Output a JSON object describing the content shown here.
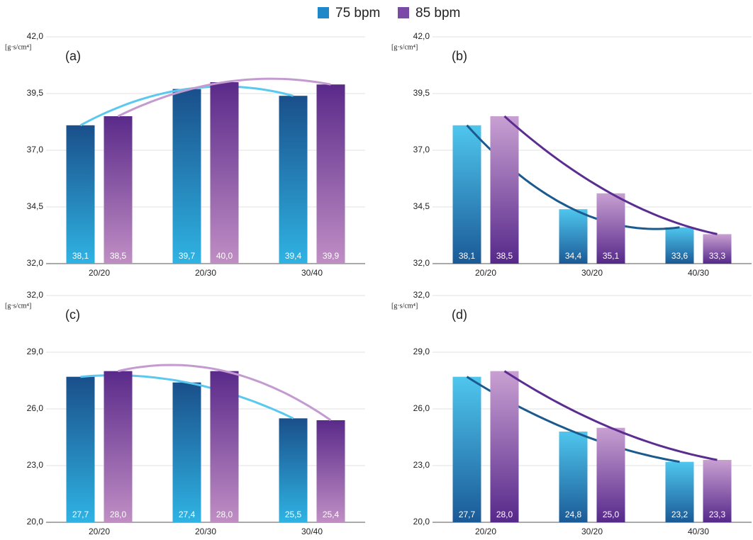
{
  "legend": [
    {
      "name": "75 bpm",
      "color": "#1e88c8"
    },
    {
      "name": "85 bpm",
      "color": "#7a4aa6"
    }
  ],
  "chart_data": [
    {
      "type": "bar",
      "label": "(a)",
      "ylabel": "[g·s/cm⁴]",
      "categories": [
        "20/20",
        "20/30",
        "30/40"
      ],
      "ylim": [
        32,
        42
      ],
      "yticks": [
        {
          "value": 32,
          "label": "32,0"
        },
        {
          "value": 34.5,
          "label": "34,5"
        },
        {
          "value": 37,
          "label": "37,0"
        },
        {
          "value": 39.5,
          "label": "39,5"
        },
        {
          "value": 42,
          "label": "42,0"
        }
      ],
      "grid": true,
      "series": [
        {
          "color": "#1a4f8a",
          "color2": "#2fb3e3",
          "trend_color": "#5bc8ef",
          "values": [
            38.1,
            39.7,
            39.4
          ],
          "value_labels": [
            "38,1",
            "39,7",
            "39,4"
          ]
        },
        {
          "color": "#5a2a8a",
          "color2": "#c08ec4",
          "trend_color": "#c49bd0",
          "values": [
            38.5,
            40.0,
            39.9
          ],
          "value_labels": [
            "38,5",
            "40,0",
            "39,9"
          ]
        }
      ]
    },
    {
      "type": "bar",
      "label": "(b)",
      "ylabel": "[g·s/cm⁴]",
      "categories": [
        "20/20",
        "30/20",
        "40/30"
      ],
      "ylim": [
        32,
        42
      ],
      "yticks": [
        {
          "value": 32,
          "label": "32,0"
        },
        {
          "value": 34.5,
          "label": "34,5"
        },
        {
          "value": 37,
          "label": "37,0"
        },
        {
          "value": 39.5,
          "label": "39,5"
        },
        {
          "value": 42,
          "label": "42,0"
        }
      ],
      "grid": true,
      "series": [
        {
          "color": "#4fc6ee",
          "color2": "#1a5a96",
          "trend_color": "#1a5a8f",
          "values": [
            38.1,
            34.4,
            33.6
          ],
          "value_labels": [
            "38,1",
            "34,4",
            "33,6"
          ]
        },
        {
          "color": "#c9a0d2",
          "color2": "#56288a",
          "trend_color": "#5c2d91",
          "values": [
            38.5,
            35.1,
            33.3
          ],
          "value_labels": [
            "38,5",
            "35,1",
            "33,3"
          ]
        }
      ]
    },
    {
      "type": "bar",
      "label": "(c)",
      "ylabel": "[g·s/cm⁴]",
      "categories": [
        "20/20",
        "20/30",
        "30/40"
      ],
      "ylim": [
        20,
        32
      ],
      "yticks": [
        {
          "value": 20,
          "label": "20,0"
        },
        {
          "value": 23,
          "label": "23,0"
        },
        {
          "value": 26,
          "label": "26,0"
        },
        {
          "value": 29,
          "label": "29,0"
        },
        {
          "value": 32,
          "label": "32,0"
        }
      ],
      "grid": true,
      "series": [
        {
          "color": "#1a4f8a",
          "color2": "#2fb3e3",
          "trend_color": "#5bc8ef",
          "values": [
            27.7,
            27.4,
            25.5
          ],
          "value_labels": [
            "27,7",
            "27,4",
            "25,5"
          ]
        },
        {
          "color": "#5a2a8a",
          "color2": "#c08ec4",
          "trend_color": "#c49bd0",
          "values": [
            28.0,
            28.0,
            25.4
          ],
          "value_labels": [
            "28,0",
            "28,0",
            "25,4"
          ]
        }
      ]
    },
    {
      "type": "bar",
      "label": "(d)",
      "ylabel": "[g·s/cm⁴]",
      "categories": [
        "20/20",
        "30/20",
        "40/30"
      ],
      "ylim": [
        20,
        32
      ],
      "yticks": [
        {
          "value": 20,
          "label": "20,0"
        },
        {
          "value": 23,
          "label": "23,0"
        },
        {
          "value": 26,
          "label": "26,0"
        },
        {
          "value": 29,
          "label": "29,0"
        },
        {
          "value": 32,
          "label": "32,0"
        }
      ],
      "grid": true,
      "series": [
        {
          "color": "#4fc6ee",
          "color2": "#1a5a96",
          "trend_color": "#1a5a8f",
          "values": [
            27.7,
            24.8,
            23.2
          ],
          "value_labels": [
            "27,7",
            "24,8",
            "23,2"
          ]
        },
        {
          "color": "#c9a0d2",
          "color2": "#56288a",
          "trend_color": "#5c2d91",
          "values": [
            28.0,
            25.0,
            23.3
          ],
          "value_labels": [
            "28,0",
            "25,0",
            "23,3"
          ]
        }
      ]
    }
  ]
}
